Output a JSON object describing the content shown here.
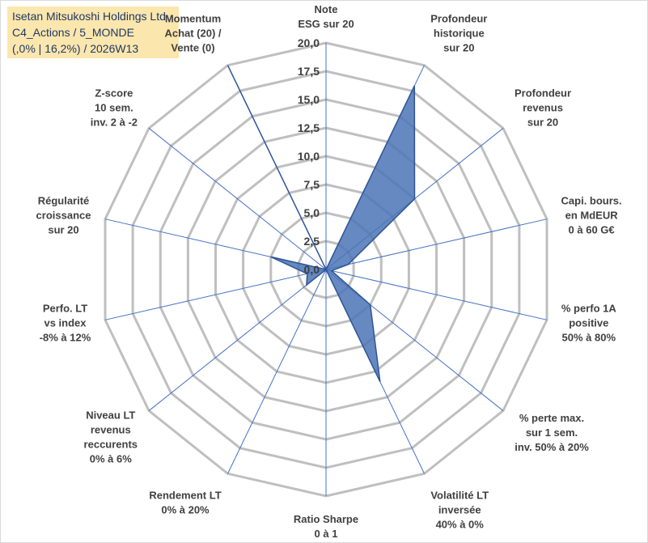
{
  "title": {
    "line1": "Isetan Mitsukoshi Holdings Ltd",
    "line2": "C4_Actions / 5_MONDE",
    "line3": "(,0% | 16,2%) / 2026W13"
  },
  "colors": {
    "fill": "#4a74b5",
    "stroke": "#2f5597",
    "grid": "#bfbfbf",
    "spoke": "#4472c4",
    "title_bg": "#fbe6ad",
    "title_text": "#1f3864"
  },
  "chart_data": {
    "type": "radar",
    "rlim": [
      0,
      20
    ],
    "tick_labels": [
      "0,0",
      "2,5",
      "5,0",
      "7,5",
      "10,0",
      "12,5",
      "15,0",
      "17,5",
      "20,0"
    ],
    "categories": [
      [
        "Note",
        "ESG sur 20"
      ],
      [
        "Profondeur",
        "historique",
        "sur 20"
      ],
      [
        "Profondeur",
        "revenus",
        "sur 20"
      ],
      [
        "Capi. bours.",
        "en MdEUR",
        "0 à 60 G€"
      ],
      [
        "% perfo 1A",
        "positive",
        "50% à 80%"
      ],
      [
        "% perte max.",
        "sur 1 sem.",
        "inv. 50% à 20%"
      ],
      [
        "Volatilité LT",
        "inversée",
        "40% à 0%"
      ],
      [
        "Ratio Sharpe",
        "0 à 1"
      ],
      [
        "Rendement LT",
        "0% à 20%"
      ],
      [
        "Niveau LT",
        "revenus",
        "reccurents",
        "0% à 6%"
      ],
      [
        "Perfo. LT",
        "vs index",
        "-8% à 12%"
      ],
      [
        "Régularité",
        "croissance",
        "sur 20"
      ],
      [
        "Z-score",
        "10 sem.",
        "inv. 2 à -2"
      ],
      [
        "Momentum",
        "Achat (20) /",
        "Vente (0)"
      ]
    ],
    "values": [
      0,
      18,
      10,
      2,
      0.5,
      5,
      11,
      0,
      0,
      2.2,
      1.7,
      5,
      0,
      20
    ],
    "grid": true,
    "legend": "none"
  }
}
